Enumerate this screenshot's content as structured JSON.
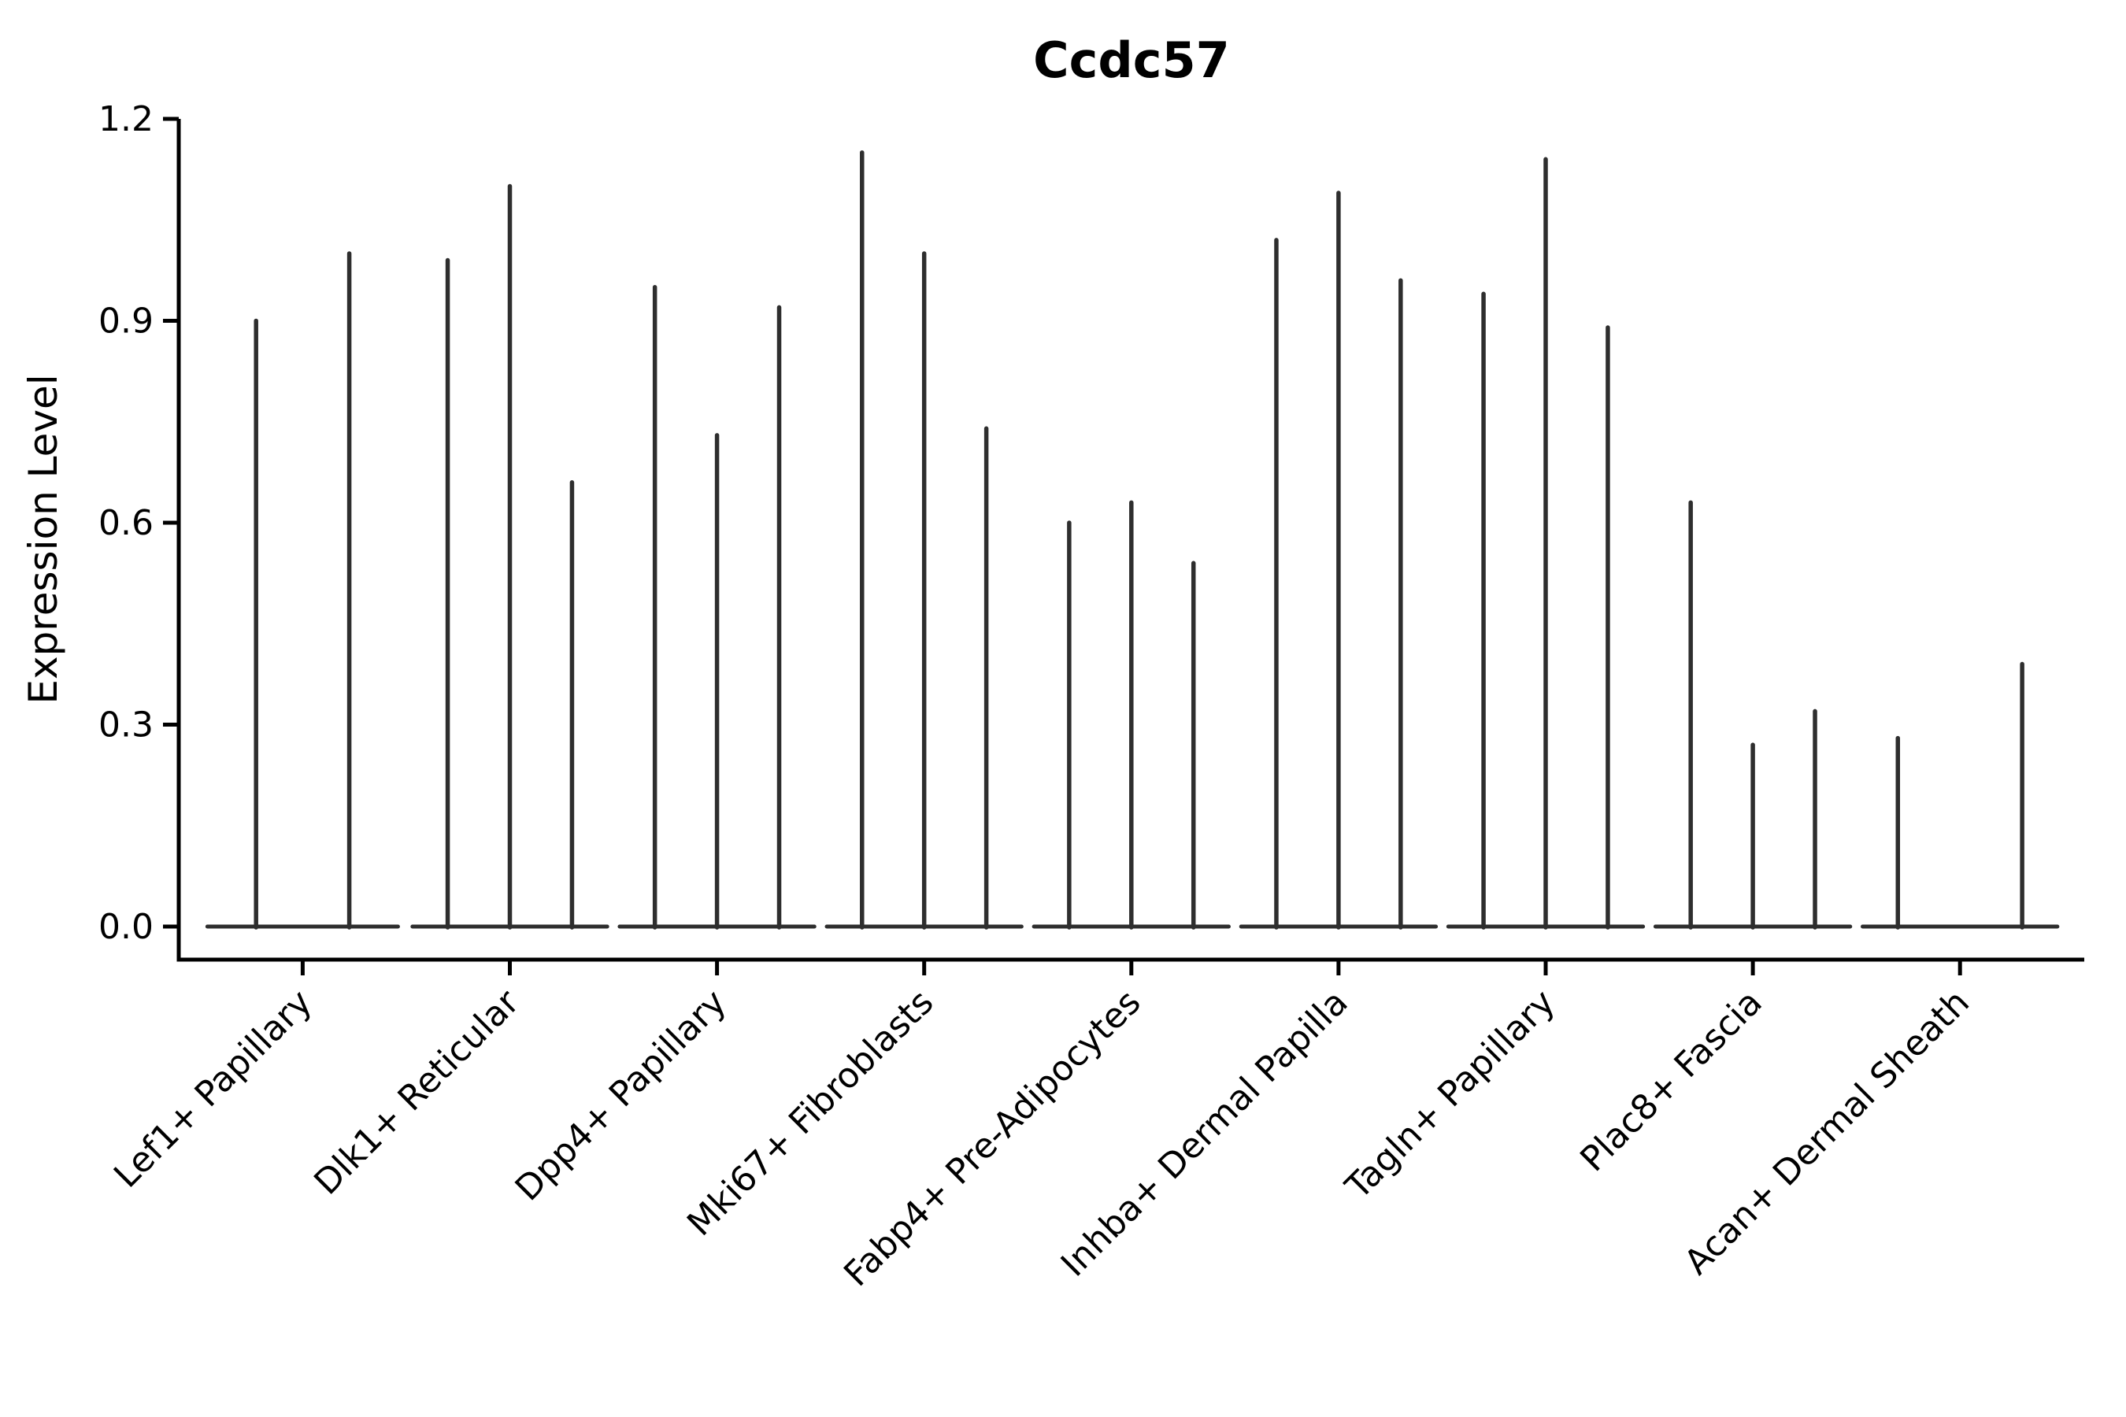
{
  "chart_data": {
    "type": "violin",
    "title": "Ccdc57",
    "ylabel": "Expression Level",
    "xlabel": "",
    "ylim": [
      0,
      1.2
    ],
    "yticks": [
      0,
      0.3,
      0.6,
      0.9,
      1.2
    ],
    "ytick_labels": [
      "0.0",
      "0.3",
      "0.6",
      "0.9",
      "1.2"
    ],
    "grid": false,
    "legend": "none",
    "line_color": "#2e2e2e",
    "axis_color": "#000000",
    "categories": [
      "Lef1+ Papillary",
      "Dlk1+ Reticular",
      "Dpp4+ Papillary",
      "Mki67+ Fibroblasts",
      "Fabp4+ Pre-Adipocytes",
      "Inhba+ Dermal Papilla",
      "Tagln+ Papillary",
      "Plac8+ Fascia",
      "Acan+ Dermal Sheath"
    ],
    "groups": [
      {
        "label": "Lef1+ Papillary",
        "violins": [
          {
            "dx": -0.225,
            "half_width": 0.235,
            "max": 0.9
          },
          {
            "dx": 0.225,
            "half_width": 0.235,
            "max": 1.0
          }
        ]
      },
      {
        "label": "Dlk1+ Reticular",
        "violins": [
          {
            "dx": -0.3,
            "half_width": 0.17,
            "max": 0.99
          },
          {
            "dx": 0.0,
            "half_width": 0.17,
            "max": 1.1
          },
          {
            "dx": 0.3,
            "half_width": 0.17,
            "max": 0.66
          }
        ]
      },
      {
        "label": "Dpp4+ Papillary",
        "violins": [
          {
            "dx": -0.3,
            "half_width": 0.17,
            "max": 0.95
          },
          {
            "dx": 0.0,
            "half_width": 0.17,
            "max": 0.73
          },
          {
            "dx": 0.3,
            "half_width": 0.17,
            "max": 0.92
          }
        ]
      },
      {
        "label": "Mki67+ Fibroblasts",
        "violins": [
          {
            "dx": -0.3,
            "half_width": 0.17,
            "max": 1.15
          },
          {
            "dx": 0.0,
            "half_width": 0.17,
            "max": 1.0
          },
          {
            "dx": 0.3,
            "half_width": 0.17,
            "max": 0.74
          }
        ]
      },
      {
        "label": "Fabp4+ Pre-Adipocytes",
        "violins": [
          {
            "dx": -0.3,
            "half_width": 0.17,
            "max": 0.6
          },
          {
            "dx": 0.0,
            "half_width": 0.17,
            "max": 0.63
          },
          {
            "dx": 0.3,
            "half_width": 0.17,
            "max": 0.54
          }
        ]
      },
      {
        "label": "Inhba+ Dermal Papilla",
        "violins": [
          {
            "dx": -0.3,
            "half_width": 0.17,
            "max": 1.02
          },
          {
            "dx": 0.0,
            "half_width": 0.17,
            "max": 1.09
          },
          {
            "dx": 0.3,
            "half_width": 0.17,
            "max": 0.96
          }
        ]
      },
      {
        "label": "Tagln+ Papillary",
        "violins": [
          {
            "dx": -0.3,
            "half_width": 0.17,
            "max": 0.94
          },
          {
            "dx": 0.0,
            "half_width": 0.17,
            "max": 1.14
          },
          {
            "dx": 0.3,
            "half_width": 0.17,
            "max": 0.89
          }
        ]
      },
      {
        "label": "Plac8+ Fascia",
        "violins": [
          {
            "dx": -0.3,
            "half_width": 0.17,
            "max": 0.63
          },
          {
            "dx": 0.0,
            "half_width": 0.17,
            "max": 0.27
          },
          {
            "dx": 0.3,
            "half_width": 0.17,
            "max": 0.32
          }
        ]
      },
      {
        "label": "Acan+ Dermal Sheath",
        "violins": [
          {
            "dx": -0.3,
            "half_width": 0.17,
            "max": 0.28
          },
          {
            "dx": 0.0,
            "half_width": 0.17,
            "max": 0.0
          },
          {
            "dx": 0.3,
            "half_width": 0.17,
            "max": 0.39
          }
        ]
      }
    ]
  }
}
